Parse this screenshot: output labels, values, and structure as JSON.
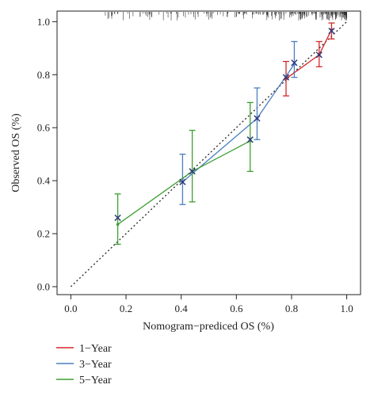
{
  "chart_data": {
    "type": "line",
    "xlabel": "Nomogram−prediced OS (%)",
    "ylabel": "Observed OS (%)",
    "xlim": [
      -0.05,
      1.05
    ],
    "ylim": [
      -0.03,
      1.04
    ],
    "x_ticks": [
      "0.0",
      "0.2",
      "0.4",
      "0.6",
      "0.8",
      "1.0"
    ],
    "y_ticks": [
      "0.0",
      "0.2",
      "0.4",
      "0.6",
      "0.8",
      "1.0"
    ],
    "reference_line": {
      "style": "dotted",
      "from": [
        0,
        0
      ],
      "to": [
        1,
        1
      ],
      "color": "#222222"
    },
    "legend": {
      "placement": "bottom-left"
    },
    "series": [
      {
        "name": "1−Year",
        "color": "#d62728",
        "points": [
          {
            "x": 0.78,
            "y": 0.785,
            "lo": 0.72,
            "hi": 0.85
          },
          {
            "x": 0.9,
            "y": 0.875,
            "lo": 0.83,
            "hi": 0.925
          },
          {
            "x": 0.945,
            "y": 0.97,
            "lo": 0.935,
            "hi": 0.995
          }
        ]
      },
      {
        "name": "3−Year",
        "color": "#4a7fc1",
        "points": [
          {
            "x": 0.405,
            "y": 0.395,
            "lo": 0.31,
            "hi": 0.5
          },
          {
            "x": 0.675,
            "y": 0.635,
            "lo": 0.555,
            "hi": 0.75
          },
          {
            "x": 0.81,
            "y": 0.84,
            "lo": 0.79,
            "hi": 0.925
          }
        ]
      },
      {
        "name": "5−Year",
        "color": "#3aa02e",
        "points": [
          {
            "x": 0.17,
            "y": 0.235,
            "lo": 0.16,
            "hi": 0.35
          },
          {
            "x": 0.44,
            "y": 0.435,
            "lo": 0.32,
            "hi": 0.59
          },
          {
            "x": 0.65,
            "y": 0.55,
            "lo": 0.435,
            "hi": 0.695
          }
        ]
      }
    ],
    "x_markers": [
      {
        "x": 0.17,
        "y": 0.26
      },
      {
        "x": 0.405,
        "y": 0.395
      },
      {
        "x": 0.44,
        "y": 0.435
      },
      {
        "x": 0.65,
        "y": 0.555
      },
      {
        "x": 0.675,
        "y": 0.635
      },
      {
        "x": 0.78,
        "y": 0.79
      },
      {
        "x": 0.81,
        "y": 0.845
      },
      {
        "x": 0.9,
        "y": 0.875
      },
      {
        "x": 0.945,
        "y": 0.965
      }
    ],
    "rug": "top, dense toward predicted OS of 1.0"
  }
}
